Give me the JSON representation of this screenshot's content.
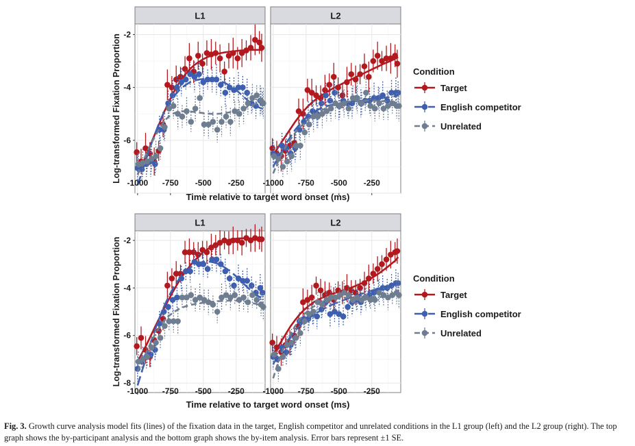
{
  "figure": {
    "caption_label": "Fig. 3.",
    "caption_text": "Growth curve analysis model fits (lines) of the fixation data in the target, English competitor and unrelated conditions in the L1 group (left) and the L2 group (right). The top graph shows the by-participant analysis and the bottom graph shows the by-item analysis. Error bars represent ±1 SE."
  },
  "chart_data": [
    {
      "type": "line",
      "panels": [
        "L1",
        "L2"
      ],
      "xlabel": "Time relative to target word onset (ms)",
      "ylabel": "Log-transformed Fixation Proportion",
      "xticks": [
        -1000,
        -750,
        -500,
        -250
      ],
      "yticks": [
        -6,
        -4,
        -2
      ],
      "xlim": [
        -1020,
        -30
      ],
      "ylim": [
        -8.0,
        -1.6
      ],
      "legend": {
        "title": "Condition",
        "position": "right",
        "entries": [
          "Target",
          "English competitor",
          "Unrelated"
        ]
      },
      "x": [
        -1000,
        -967,
        -933,
        -900,
        -867,
        -833,
        -800,
        -767,
        -733,
        -700,
        -667,
        -633,
        -600,
        -567,
        -533,
        -500,
        -467,
        -433,
        -400,
        -367,
        -333,
        -300,
        -267,
        -233,
        -200,
        -167,
        -133,
        -100,
        -67,
        -50
      ],
      "series": [
        {
          "name": "Target",
          "color": "#b2191f",
          "dash": "solid",
          "L1": {
            "points": [
              -6.45,
              -6.8,
              -6.3,
              -6.5,
              -6.8,
              -6.4,
              -5.4,
              -3.9,
              -4.0,
              -3.7,
              -3.6,
              -3.3,
              -2.9,
              -3.4,
              -2.8,
              -3.1,
              -2.7,
              -2.75,
              -2.7,
              -2.9,
              -3.4,
              -2.8,
              -2.7,
              -2.9,
              -2.7,
              -2.6,
              -2.5,
              -2.2,
              -2.3,
              -2.5
            ],
            "fit": [
              -7.3,
              -6.95,
              -6.55,
              -6.15,
              -5.75,
              -5.35,
              -4.95,
              -4.6,
              -4.25,
              -3.95,
              -3.7,
              -3.48,
              -3.3,
              -3.15,
              -3.03,
              -2.93,
              -2.85,
              -2.79,
              -2.74,
              -2.7,
              -2.67,
              -2.65,
              -2.63,
              -2.61,
              -2.6,
              -2.59,
              -2.58,
              -2.58,
              -2.58,
              -2.6
            ]
          },
          "L2": {
            "points": [
              -6.3,
              -6.5,
              -6.6,
              -6.4,
              -6.2,
              -6.1,
              -4.9,
              -5.0,
              -4.1,
              -4.2,
              -4.3,
              -4.4,
              -4.1,
              -3.9,
              -3.6,
              -4.0,
              -4.3,
              -3.8,
              -3.5,
              -3.7,
              -3.5,
              -3.2,
              -3.6,
              -3.0,
              -2.8,
              -3.0,
              -2.9,
              -2.9,
              -2.8,
              -3.1
            ],
            "fit": [
              -6.55,
              -6.3,
              -6.05,
              -5.8,
              -5.55,
              -5.3,
              -5.08,
              -4.88,
              -4.7,
              -4.55,
              -4.42,
              -4.3,
              -4.2,
              -4.1,
              -4.0,
              -3.92,
              -3.84,
              -3.76,
              -3.68,
              -3.6,
              -3.52,
              -3.44,
              -3.36,
              -3.28,
              -3.2,
              -3.12,
              -3.05,
              -2.98,
              -2.9,
              -2.85
            ]
          }
        },
        {
          "name": "English competitor",
          "color": "#3e5fb0",
          "dash": "long",
          "L1": {
            "points": [
              -7.05,
              -7.1,
              -6.9,
              -6.8,
              -6.9,
              -5.6,
              -5.6,
              -4.6,
              -4.3,
              -4.0,
              -3.8,
              -3.7,
              -3.5,
              -3.6,
              -3.5,
              -3.8,
              -3.7,
              -3.7,
              -3.7,
              -3.9,
              -4.2,
              -4.0,
              -4.1,
              -4.0,
              -4.0,
              -4.2,
              -4.6,
              -4.7,
              -4.5,
              -4.6
            ],
            "fit": [
              -7.7,
              -7.2,
              -6.7,
              -6.2,
              -5.75,
              -5.3,
              -4.95,
              -4.65,
              -4.4,
              -4.2,
              -4.02,
              -3.9,
              -3.8,
              -3.74,
              -3.7,
              -3.68,
              -3.68,
              -3.69,
              -3.72,
              -3.77,
              -3.84,
              -3.93,
              -4.04,
              -4.17,
              -4.32,
              -4.47,
              -4.6,
              -4.7,
              -4.78,
              -4.8
            ]
          },
          "L2": {
            "points": [
              -6.5,
              -6.6,
              -6.2,
              -6.3,
              -6.5,
              -6.3,
              -5.6,
              -5.3,
              -5.1,
              -4.9,
              -5.0,
              -4.6,
              -4.3,
              -4.5,
              -4.2,
              -4.7,
              -4.5,
              -4.6,
              -4.6,
              -4.4,
              -4.6,
              -4.5,
              -4.5,
              -4.4,
              -4.4,
              -4.3,
              -4.5,
              -4.2,
              -4.2,
              -4.2
            ],
            "fit": [
              -7.0,
              -6.7,
              -6.4,
              -6.1,
              -5.85,
              -5.6,
              -5.4,
              -5.22,
              -5.08,
              -4.96,
              -4.86,
              -4.78,
              -4.72,
              -4.67,
              -4.63,
              -4.6,
              -4.58,
              -4.56,
              -4.54,
              -4.52,
              -4.5,
              -4.48,
              -4.46,
              -4.44,
              -4.42,
              -4.4,
              -4.38,
              -4.35,
              -4.33,
              -4.3
            ]
          }
        },
        {
          "name": "Unrelated",
          "color": "#6e7d90",
          "dash": "medium",
          "L1": {
            "points": [
              -6.9,
              -6.85,
              -6.8,
              -6.7,
              -6.6,
              -6.3,
              -5.5,
              -4.8,
              -4.7,
              -5.0,
              -5.1,
              -4.9,
              -5.3,
              -4.8,
              -4.4,
              -5.4,
              -5.4,
              -5.3,
              -5.6,
              -5.3,
              -5.1,
              -5.3,
              -4.9,
              -5.0,
              -4.8,
              -4.6,
              -4.4,
              -4.3,
              -4.5,
              -4.6
            ],
            "fit": [
              -7.3,
              -6.9,
              -6.5,
              -6.15,
              -5.85,
              -5.55,
              -5.3,
              -5.12,
              -5.0,
              -4.93,
              -4.9,
              -4.9,
              -4.91,
              -4.93,
              -4.95,
              -4.97,
              -4.99,
              -5.0,
              -5.0,
              -4.99,
              -4.97,
              -4.94,
              -4.9,
              -4.85,
              -4.8,
              -4.74,
              -4.68,
              -4.62,
              -4.56,
              -4.52
            ]
          },
          "L2": {
            "points": [
              -6.6,
              -6.7,
              -7.0,
              -6.8,
              -6.6,
              -6.2,
              -6.2,
              -5.7,
              -5.4,
              -5.1,
              -5.1,
              -5.0,
              -4.9,
              -4.8,
              -4.6,
              -4.7,
              -4.6,
              -4.8,
              -4.4,
              -4.4,
              -4.6,
              -4.2,
              -4.7,
              -4.8,
              -4.6,
              -4.8,
              -4.7,
              -4.6,
              -4.7,
              -4.7
            ],
            "fit": [
              -7.25,
              -6.85,
              -6.5,
              -6.2,
              -5.95,
              -5.72,
              -5.52,
              -5.35,
              -5.2,
              -5.07,
              -4.96,
              -4.87,
              -4.79,
              -4.72,
              -4.66,
              -4.61,
              -4.57,
              -4.54,
              -4.52,
              -4.51,
              -4.5,
              -4.5,
              -4.5,
              -4.5,
              -4.51,
              -4.52,
              -4.53,
              -4.54,
              -4.55,
              -4.56
            ]
          }
        }
      ]
    },
    {
      "type": "line",
      "panels": [
        "L1",
        "L2"
      ],
      "xlabel": "Time relative to target word onset (ms)",
      "ylabel": "Log-transformed Fixation Proportion",
      "xticks": [
        -1000,
        -750,
        -500,
        -250
      ],
      "yticks": [
        -8,
        -6,
        -4,
        -2
      ],
      "xlim": [
        -1020,
        -30
      ],
      "ylim": [
        -8.4,
        -1.6
      ],
      "legend": {
        "title": "Condition",
        "position": "right",
        "entries": [
          "Target",
          "English competitor",
          "Unrelated"
        ]
      },
      "x": [
        -1000,
        -967,
        -933,
        -900,
        -867,
        -833,
        -800,
        -767,
        -733,
        -700,
        -667,
        -633,
        -600,
        -567,
        -533,
        -500,
        -467,
        -433,
        -400,
        -367,
        -333,
        -300,
        -267,
        -233,
        -200,
        -167,
        -133,
        -100,
        -67,
        -50
      ],
      "series": [
        {
          "name": "Target",
          "color": "#b2191f",
          "dash": "solid",
          "L1": {
            "points": [
              -6.45,
              -6.1,
              -6.6,
              -6.9,
              -6.2,
              -5.8,
              -5.3,
              -3.9,
              -3.6,
              -3.4,
              -3.4,
              -2.5,
              -2.5,
              -2.5,
              -2.6,
              -2.4,
              -2.5,
              -2.3,
              -2.2,
              -2.1,
              -2.0,
              -2.1,
              -2.0,
              -2.0,
              -2.1,
              -1.9,
              -2.0,
              -1.9,
              -1.95,
              -1.95
            ],
            "fit": [
              -7.1,
              -6.75,
              -6.4,
              -6.02,
              -5.63,
              -5.25,
              -4.88,
              -4.52,
              -4.18,
              -3.86,
              -3.56,
              -3.3,
              -3.06,
              -2.85,
              -2.66,
              -2.5,
              -2.37,
              -2.26,
              -2.16,
              -2.08,
              -2.02,
              -1.97,
              -1.94,
              -1.92,
              -1.91,
              -1.91,
              -1.92,
              -1.94,
              -1.97,
              -1.99
            ]
          },
          "L2": {
            "points": [
              -6.3,
              -6.5,
              -6.7,
              -6.4,
              -6.3,
              -6.0,
              -5.6,
              -4.6,
              -4.5,
              -4.4,
              -3.9,
              -4.1,
              -4.3,
              -4.2,
              -4.5,
              -4.1,
              -4.2,
              -4.0,
              -4.1,
              -4.2,
              -4.0,
              -3.8,
              -3.6,
              -3.4,
              -3.2,
              -3.0,
              -2.8,
              -2.6,
              -2.5,
              -2.45
            ],
            "fit": [
              -6.8,
              -6.5,
              -6.2,
              -5.9,
              -5.6,
              -5.35,
              -5.12,
              -4.93,
              -4.77,
              -4.63,
              -4.52,
              -4.43,
              -4.35,
              -4.28,
              -4.22,
              -4.16,
              -4.1,
              -4.04,
              -3.97,
              -3.9,
              -3.82,
              -3.73,
              -3.63,
              -3.52,
              -3.4,
              -3.27,
              -3.13,
              -2.98,
              -2.83,
              -2.7
            ]
          }
        },
        {
          "name": "English competitor",
          "color": "#3e5fb0",
          "dash": "long",
          "L1": {
            "points": [
              -7.4,
              -7.1,
              -6.9,
              -6.8,
              -6.6,
              -5.5,
              -5.0,
              -4.8,
              -4.5,
              -4.4,
              -3.6,
              -3.3,
              -3.3,
              -2.9,
              -3.0,
              -3.0,
              -3.2,
              -2.8,
              -2.8,
              -3.0,
              -3.3,
              -3.6,
              -3.9,
              -3.6,
              -3.7,
              -3.7,
              -3.9,
              -4.2,
              -4.0,
              -4.2
            ],
            "fit": [
              -8.1,
              -7.5,
              -6.9,
              -6.3,
              -5.75,
              -5.25,
              -4.8,
              -4.4,
              -4.05,
              -3.75,
              -3.5,
              -3.3,
              -3.15,
              -3.03,
              -2.95,
              -2.9,
              -2.89,
              -2.91,
              -2.96,
              -3.04,
              -3.15,
              -3.28,
              -3.43,
              -3.6,
              -3.78,
              -3.96,
              -4.13,
              -4.28,
              -4.4,
              -4.45
            ]
          },
          "L2": {
            "points": [
              -6.9,
              -7.0,
              -6.5,
              -6.7,
              -6.4,
              -6.1,
              -5.4,
              -5.3,
              -5.3,
              -5.1,
              -5.2,
              -4.9,
              -4.6,
              -5.1,
              -5.0,
              -5.1,
              -5.2,
              -4.8,
              -4.6,
              -4.5,
              -4.6,
              -4.4,
              -4.3,
              -4.2,
              -4.1,
              -4.0,
              -4.0,
              -3.9,
              -3.8,
              -3.8
            ],
            "fit": [
              -7.2,
              -6.9,
              -6.6,
              -6.3,
              -6.03,
              -5.8,
              -5.6,
              -5.43,
              -5.29,
              -5.16,
              -5.04,
              -4.93,
              -4.83,
              -4.74,
              -4.66,
              -4.59,
              -4.52,
              -4.45,
              -4.38,
              -4.32,
              -4.26,
              -4.2,
              -4.14,
              -4.08,
              -4.02,
              -3.97,
              -3.92,
              -3.87,
              -3.82,
              -3.78
            ]
          }
        },
        {
          "name": "Unrelated",
          "color": "#6e7d90",
          "dash": "medium",
          "L1": {
            "points": [
              -7.1,
              -7.0,
              -6.9,
              -6.5,
              -6.3,
              -6.1,
              -5.6,
              -5.4,
              -5.4,
              -5.4,
              -4.4,
              -4.4,
              -4.3,
              -4.5,
              -4.4,
              -4.5,
              -4.6,
              -4.7,
              -5.0,
              -4.4,
              -4.3,
              -4.4,
              -4.3,
              -4.5,
              -4.4,
              -4.6,
              -4.3,
              -4.5,
              -4.7,
              -4.8
            ],
            "fit": [
              -7.5,
              -7.1,
              -6.7,
              -6.3,
              -5.95,
              -5.65,
              -5.4,
              -5.2,
              -5.05,
              -4.93,
              -4.84,
              -4.77,
              -4.72,
              -4.68,
              -4.65,
              -4.62,
              -4.6,
              -4.58,
              -4.56,
              -4.55,
              -4.54,
              -4.53,
              -4.53,
              -4.54,
              -4.56,
              -4.59,
              -4.63,
              -4.67,
              -4.72,
              -4.75
            ]
          },
          "L2": {
            "points": [
              -6.8,
              -7.4,
              -6.9,
              -6.4,
              -6.3,
              -6.1,
              -5.9,
              -5.4,
              -5.1,
              -5.0,
              -4.6,
              -4.7,
              -4.5,
              -4.4,
              -4.4,
              -4.3,
              -4.2,
              -4.3,
              -4.5,
              -4.4,
              -4.5,
              -4.4,
              -4.5,
              -4.5,
              -4.2,
              -4.3,
              -4.4,
              -4.3,
              -4.2,
              -4.3
            ],
            "fit": [
              -7.8,
              -7.2,
              -6.7,
              -6.28,
              -5.92,
              -5.6,
              -5.34,
              -5.12,
              -4.95,
              -4.81,
              -4.7,
              -4.62,
              -4.56,
              -4.51,
              -4.47,
              -4.44,
              -4.42,
              -4.4,
              -4.39,
              -4.38,
              -4.38,
              -4.38,
              -4.38,
              -4.38,
              -4.38,
              -4.38,
              -4.38,
              -4.37,
              -4.36,
              -4.35
            ]
          }
        }
      ]
    }
  ]
}
